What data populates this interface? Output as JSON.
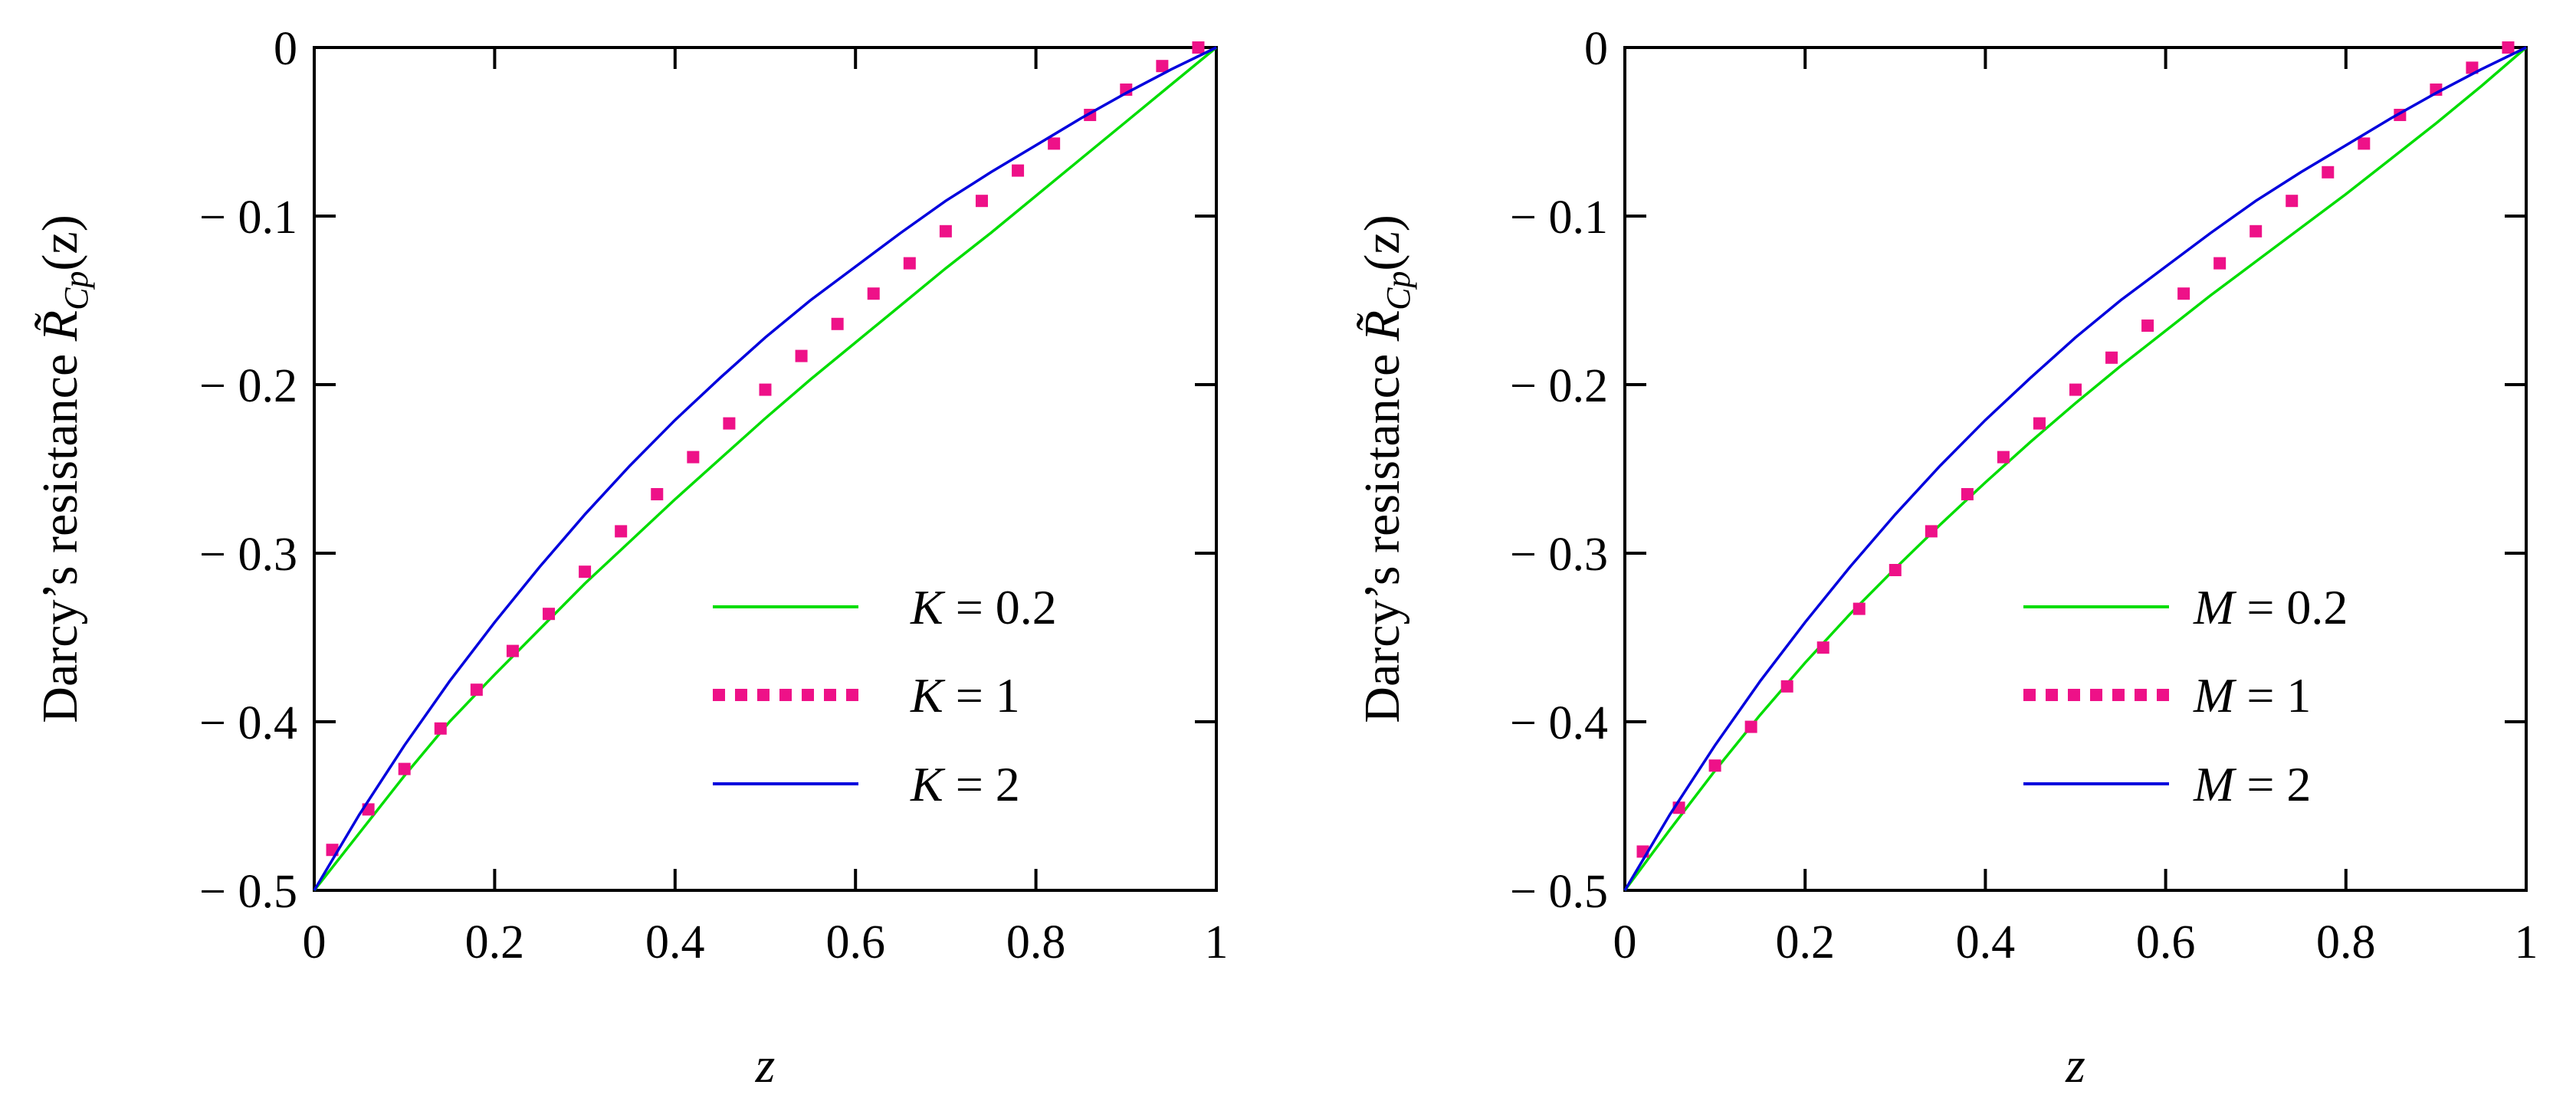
{
  "figure": {
    "background": "#ffffff"
  },
  "chart_data": [
    {
      "type": "line",
      "panel": "left",
      "title": "",
      "xlabel": "z",
      "ylabel_prefix": "Darcy’s resistance",
      "ylabel_symbol": "R̃",
      "ylabel_subscript": "Cp",
      "ylabel_arg": "(z)",
      "xlim": [
        0,
        1
      ],
      "ylim": [
        -0.5,
        0
      ],
      "xticks": [
        0,
        0.2,
        0.4,
        0.6,
        0.8,
        1
      ],
      "yticks": [
        0,
        -0.1,
        -0.2,
        -0.3,
        -0.4,
        -0.5
      ],
      "xtick_labels": [
        "0",
        "0.2",
        "0.4",
        "0.6",
        "0.8",
        "1"
      ],
      "ytick_labels": [
        "0",
        "− 0.1",
        "− 0.2",
        "− 0.3",
        "− 0.4",
        "− 0.5"
      ],
      "grid": false,
      "legend_position": "bottom-right",
      "series": [
        {
          "name": "K = 0.2",
          "param": "K",
          "param_value": "0.2",
          "style": "solid",
          "color": "#00dd00",
          "x": [
            0,
            0.05,
            0.1,
            0.15,
            0.2,
            0.25,
            0.3,
            0.35,
            0.4,
            0.45,
            0.5,
            0.55,
            0.6,
            0.65,
            0.7,
            0.75,
            0.8,
            0.85,
            0.9,
            0.95,
            1
          ],
          "y": [
            -0.5,
            -0.466,
            -0.432,
            -0.4,
            -0.372,
            -0.345,
            -0.318,
            -0.293,
            -0.268,
            -0.244,
            -0.22,
            -0.197,
            -0.175,
            -0.153,
            -0.131,
            -0.11,
            -0.088,
            -0.066,
            -0.044,
            -0.022,
            0
          ]
        },
        {
          "name": "K = 1",
          "param": "K",
          "param_value": "1",
          "style": "dotted",
          "color": "#ee1188",
          "x": [
            0.02,
            0.06,
            0.1,
            0.14,
            0.18,
            0.22,
            0.26,
            0.3,
            0.34,
            0.38,
            0.42,
            0.46,
            0.5,
            0.54,
            0.58,
            0.62,
            0.66,
            0.7,
            0.74,
            0.78,
            0.82,
            0.86,
            0.9,
            0.94,
            0.98
          ],
          "y": [
            -0.476,
            -0.452,
            -0.428,
            -0.404,
            -0.381,
            -0.358,
            -0.336,
            -0.311,
            -0.287,
            -0.265,
            -0.243,
            -0.223,
            -0.203,
            -0.183,
            -0.164,
            -0.146,
            -0.128,
            -0.109,
            -0.091,
            -0.073,
            -0.057,
            -0.04,
            -0.025,
            -0.011,
            0
          ]
        },
        {
          "name": "K = 2",
          "param": "K",
          "param_value": "2",
          "style": "solid",
          "color": "#0000dd",
          "x": [
            0,
            0.05,
            0.1,
            0.15,
            0.2,
            0.25,
            0.3,
            0.35,
            0.4,
            0.45,
            0.5,
            0.55,
            0.6,
            0.65,
            0.7,
            0.75,
            0.8,
            0.85,
            0.9,
            0.95,
            1
          ],
          "y": [
            -0.5,
            -0.455,
            -0.414,
            -0.376,
            -0.341,
            -0.308,
            -0.277,
            -0.248,
            -0.221,
            -0.196,
            -0.172,
            -0.15,
            -0.13,
            -0.11,
            -0.091,
            -0.074,
            -0.058,
            -0.042,
            -0.027,
            -0.013,
            0
          ]
        }
      ]
    },
    {
      "type": "line",
      "panel": "right",
      "title": "",
      "xlabel": "z",
      "ylabel_prefix": "Darcy’s resistance",
      "ylabel_symbol": "R̃",
      "ylabel_subscript": "Cp",
      "ylabel_arg": "(z)",
      "xlim": [
        0,
        1
      ],
      "ylim": [
        -0.5,
        0
      ],
      "xticks": [
        0,
        0.2,
        0.4,
        0.6,
        0.8,
        1
      ],
      "yticks": [
        0,
        -0.1,
        -0.2,
        -0.3,
        -0.4,
        -0.5
      ],
      "xtick_labels": [
        "0",
        "0.2",
        "0.4",
        "0.6",
        "0.8",
        "1"
      ],
      "ytick_labels": [
        "0",
        "− 0.1",
        "− 0.2",
        "− 0.3",
        "− 0.4",
        "− 0.5"
      ],
      "grid": false,
      "legend_position": "bottom-right",
      "series": [
        {
          "name": "M = 0.2",
          "param": "M",
          "param_value": "0.2",
          "style": "solid",
          "color": "#00dd00",
          "x": [
            0,
            0.05,
            0.1,
            0.15,
            0.2,
            0.25,
            0.3,
            0.35,
            0.4,
            0.45,
            0.5,
            0.55,
            0.6,
            0.65,
            0.7,
            0.75,
            0.8,
            0.85,
            0.9,
            0.95,
            1
          ],
          "y": [
            -0.5,
            -0.464,
            -0.429,
            -0.396,
            -0.365,
            -0.336,
            -0.309,
            -0.283,
            -0.258,
            -0.234,
            -0.211,
            -0.189,
            -0.168,
            -0.147,
            -0.127,
            -0.107,
            -0.087,
            -0.066,
            -0.045,
            -0.023,
            0
          ]
        },
        {
          "name": "M = 1",
          "param": "M",
          "param_value": "1",
          "style": "dotted",
          "color": "#ee1188",
          "x": [
            0.02,
            0.06,
            0.1,
            0.14,
            0.18,
            0.22,
            0.26,
            0.3,
            0.34,
            0.38,
            0.42,
            0.46,
            0.5,
            0.54,
            0.58,
            0.62,
            0.66,
            0.7,
            0.74,
            0.78,
            0.82,
            0.86,
            0.9,
            0.94,
            0.98
          ],
          "y": [
            -0.477,
            -0.451,
            -0.426,
            -0.403,
            -0.379,
            -0.356,
            -0.333,
            -0.31,
            -0.287,
            -0.265,
            -0.243,
            -0.223,
            -0.203,
            -0.184,
            -0.165,
            -0.146,
            -0.128,
            -0.109,
            -0.091,
            -0.074,
            -0.057,
            -0.04,
            -0.025,
            -0.012,
            0
          ]
        },
        {
          "name": "M = 2",
          "param": "M",
          "param_value": "2",
          "style": "solid",
          "color": "#0000dd",
          "x": [
            0,
            0.05,
            0.1,
            0.15,
            0.2,
            0.25,
            0.3,
            0.35,
            0.4,
            0.45,
            0.5,
            0.55,
            0.6,
            0.65,
            0.7,
            0.75,
            0.8,
            0.85,
            0.9,
            0.95,
            1
          ],
          "y": [
            -0.5,
            -0.455,
            -0.414,
            -0.376,
            -0.341,
            -0.308,
            -0.277,
            -0.248,
            -0.221,
            -0.196,
            -0.172,
            -0.15,
            -0.13,
            -0.11,
            -0.091,
            -0.074,
            -0.058,
            -0.042,
            -0.027,
            -0.013,
            0
          ]
        }
      ]
    }
  ]
}
